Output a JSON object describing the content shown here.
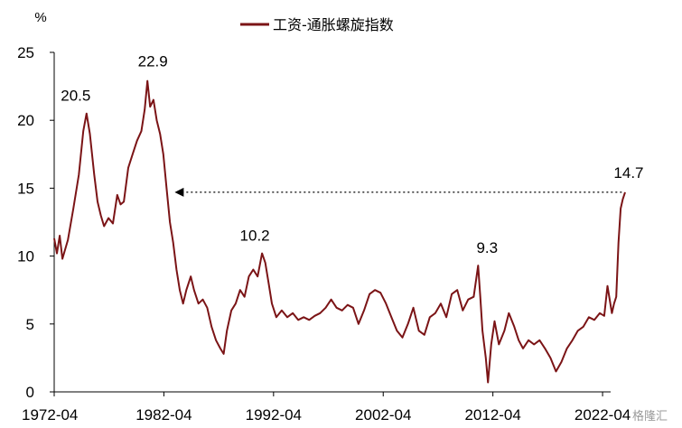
{
  "chart_data": {
    "type": "line",
    "title": "",
    "xlabel": "",
    "ylabel": "%",
    "ylim": [
      0,
      25
    ],
    "yticks": [
      0,
      5,
      10,
      15,
      20,
      25
    ],
    "xlim": [
      1972.25,
      2022.25
    ],
    "xticks": [
      "1972-04",
      "1982-04",
      "1992-04",
      "2002-04",
      "2012-04",
      "2022-04"
    ],
    "grid": false,
    "legend_position": "top-center",
    "series": [
      {
        "name": "工资-通胀螺旋指数",
        "color": "#7b1416",
        "points": [
          [
            1972.25,
            11.3
          ],
          [
            1972.5,
            10.2
          ],
          [
            1972.75,
            11.5
          ],
          [
            1973.0,
            9.8
          ],
          [
            1973.5,
            11.2
          ],
          [
            1974.0,
            13.5
          ],
          [
            1974.5,
            16.0
          ],
          [
            1974.9,
            19.2
          ],
          [
            1975.2,
            20.5
          ],
          [
            1975.5,
            19.0
          ],
          [
            1975.9,
            16.0
          ],
          [
            1976.2,
            14.0
          ],
          [
            1976.5,
            13.0
          ],
          [
            1976.8,
            12.2
          ],
          [
            1977.2,
            12.8
          ],
          [
            1977.6,
            12.4
          ],
          [
            1978.0,
            14.5
          ],
          [
            1978.3,
            13.8
          ],
          [
            1978.6,
            14.0
          ],
          [
            1979.0,
            16.5
          ],
          [
            1979.4,
            17.5
          ],
          [
            1979.8,
            18.5
          ],
          [
            1980.2,
            19.2
          ],
          [
            1980.5,
            20.8
          ],
          [
            1980.75,
            22.9
          ],
          [
            1981.0,
            21.0
          ],
          [
            1981.3,
            21.5
          ],
          [
            1981.6,
            20.0
          ],
          [
            1981.9,
            19.0
          ],
          [
            1982.2,
            17.5
          ],
          [
            1982.5,
            15.0
          ],
          [
            1982.8,
            12.5
          ],
          [
            1983.1,
            11.0
          ],
          [
            1983.4,
            9.0
          ],
          [
            1983.7,
            7.5
          ],
          [
            1984.0,
            6.5
          ],
          [
            1984.3,
            7.5
          ],
          [
            1984.7,
            8.5
          ],
          [
            1985.0,
            7.5
          ],
          [
            1985.4,
            6.5
          ],
          [
            1985.8,
            6.8
          ],
          [
            1986.2,
            6.2
          ],
          [
            1986.6,
            4.8
          ],
          [
            1987.0,
            3.8
          ],
          [
            1987.4,
            3.2
          ],
          [
            1987.7,
            2.8
          ],
          [
            1988.0,
            4.5
          ],
          [
            1988.4,
            6.0
          ],
          [
            1988.8,
            6.5
          ],
          [
            1989.2,
            7.5
          ],
          [
            1989.6,
            7.0
          ],
          [
            1990.0,
            8.5
          ],
          [
            1990.4,
            9.0
          ],
          [
            1990.8,
            8.5
          ],
          [
            1991.2,
            10.2
          ],
          [
            1991.5,
            9.5
          ],
          [
            1991.8,
            8.0
          ],
          [
            1992.1,
            6.5
          ],
          [
            1992.5,
            5.5
          ],
          [
            1993.0,
            6.0
          ],
          [
            1993.5,
            5.5
          ],
          [
            1994.0,
            5.8
          ],
          [
            1994.5,
            5.3
          ],
          [
            1995.0,
            5.5
          ],
          [
            1995.5,
            5.3
          ],
          [
            1996.0,
            5.6
          ],
          [
            1996.5,
            5.8
          ],
          [
            1997.0,
            6.2
          ],
          [
            1997.5,
            6.8
          ],
          [
            1998.0,
            6.2
          ],
          [
            1998.5,
            6.0
          ],
          [
            1999.0,
            6.4
          ],
          [
            1999.5,
            6.2
          ],
          [
            2000.0,
            5.0
          ],
          [
            2000.5,
            6.0
          ],
          [
            2001.0,
            7.2
          ],
          [
            2001.5,
            7.5
          ],
          [
            2002.0,
            7.3
          ],
          [
            2002.5,
            6.5
          ],
          [
            2003.0,
            5.5
          ],
          [
            2003.5,
            4.5
          ],
          [
            2004.0,
            4.0
          ],
          [
            2004.5,
            5.0
          ],
          [
            2005.0,
            6.2
          ],
          [
            2005.5,
            4.5
          ],
          [
            2006.0,
            4.2
          ],
          [
            2006.5,
            5.5
          ],
          [
            2007.0,
            5.8
          ],
          [
            2007.5,
            6.5
          ],
          [
            2008.0,
            5.5
          ],
          [
            2008.5,
            7.2
          ],
          [
            2009.0,
            7.5
          ],
          [
            2009.5,
            6.0
          ],
          [
            2010.0,
            6.8
          ],
          [
            2010.5,
            7.0
          ],
          [
            2010.9,
            9.3
          ],
          [
            2011.1,
            7.0
          ],
          [
            2011.3,
            4.5
          ],
          [
            2011.6,
            2.5
          ],
          [
            2011.8,
            0.7
          ],
          [
            2012.1,
            3.5
          ],
          [
            2012.4,
            5.2
          ],
          [
            2012.8,
            3.5
          ],
          [
            2013.3,
            4.5
          ],
          [
            2013.7,
            5.8
          ],
          [
            2014.2,
            4.8
          ],
          [
            2014.6,
            3.8
          ],
          [
            2015.0,
            3.2
          ],
          [
            2015.5,
            3.8
          ],
          [
            2016.0,
            3.5
          ],
          [
            2016.5,
            3.8
          ],
          [
            2017.0,
            3.2
          ],
          [
            2017.5,
            2.5
          ],
          [
            2018.0,
            1.5
          ],
          [
            2018.5,
            2.2
          ],
          [
            2019.0,
            3.2
          ],
          [
            2019.5,
            3.8
          ],
          [
            2020.0,
            4.5
          ],
          [
            2020.5,
            4.8
          ],
          [
            2021.0,
            5.5
          ],
          [
            2021.5,
            5.3
          ],
          [
            2022.0,
            5.8
          ],
          [
            2022.4,
            5.6
          ],
          [
            2022.7,
            7.8
          ],
          [
            2023.1,
            5.8
          ],
          [
            2023.3,
            6.5
          ],
          [
            2023.5,
            7.0
          ],
          [
            2023.7,
            11.0
          ],
          [
            2023.9,
            13.5
          ],
          [
            2024.1,
            14.2
          ],
          [
            2024.3,
            14.7
          ]
        ]
      }
    ],
    "annotations": [
      {
        "text": "20.5",
        "x": 1975.2,
        "y": 20.5
      },
      {
        "text": "22.9",
        "x": 1980.75,
        "y": 22.9
      },
      {
        "text": "10.2",
        "x": 1991.2,
        "y": 10.2
      },
      {
        "text": "9.3",
        "x": 2010.9,
        "y": 9.3
      },
      {
        "text": "14.7",
        "x": 2024.3,
        "y": 14.7
      }
    ],
    "arrow": {
      "from": [
        2024.0,
        14.7
      ],
      "to": [
        1983.4,
        14.7
      ],
      "style": "dotted"
    }
  }
}
